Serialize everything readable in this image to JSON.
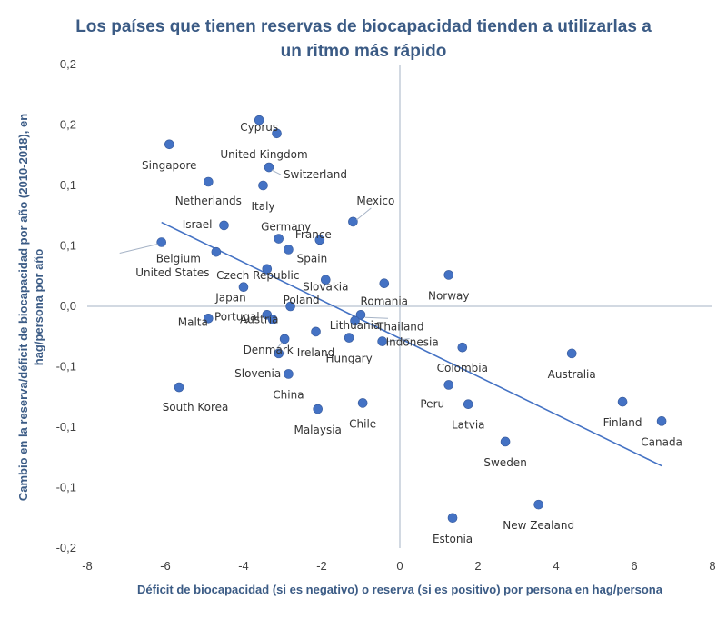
{
  "chart_data": {
    "type": "scatter",
    "title_lines": [
      "Los países que tienen reservas de biocapacidad  tienden a utilizarlas a",
      "un ritmo más rápido"
    ],
    "xlabel": "Déficit de biocapacidad (si es negativo) o reserva (si es positivo) por persona en hag/persona",
    "ylabel_lines": [
      "Cambio en la reserva/déficit de biocapacidad por año (2010-2018), en",
      "hag/persona por año"
    ],
    "xlim": [
      -8,
      8
    ],
    "ylim": [
      -0.2,
      0.2
    ],
    "x_ticks": [
      -8,
      -6,
      -4,
      -2,
      0,
      2,
      4,
      6,
      8
    ],
    "x_tick_labels": [
      "-8",
      "-6",
      "-4",
      "-2",
      "0",
      "2",
      "4",
      "6",
      "8"
    ],
    "y_ticks": [
      0.2,
      0.15,
      0.1,
      0.05,
      0,
      -0.05,
      -0.1,
      -0.15,
      -0.2
    ],
    "y_tick_labels": [
      "0,2",
      "0,2",
      "0,1",
      "0,1",
      "0,0",
      "-0,1",
      "-0,1",
      "-0,1",
      "-0,2"
    ],
    "marker_color": "#4472c4",
    "trendline": {
      "x": [
        -6.1,
        6.7
      ],
      "y": [
        0.0695,
        -0.132
      ],
      "color": "#4472c4"
    },
    "points": [
      {
        "label": "Cyprus",
        "x": -3.6,
        "y": 0.154
      },
      {
        "label": "United Kingdom",
        "x": -3.15,
        "y": 0.143
      },
      {
        "label": "Singapore",
        "x": -5.9,
        "y": 0.134
      },
      {
        "label": "Switzerland",
        "x": -3.35,
        "y": 0.115
      },
      {
        "label": "Netherlands",
        "x": -4.9,
        "y": 0.103
      },
      {
        "label": "Italy",
        "x": -3.5,
        "y": 0.1
      },
      {
        "label": "Mexico",
        "x": -1.2,
        "y": 0.07
      },
      {
        "label": "Israel",
        "x": -4.5,
        "y": 0.067
      },
      {
        "label": "Germany",
        "x": -3.1,
        "y": 0.056
      },
      {
        "label": "France",
        "x": -2.05,
        "y": 0.055
      },
      {
        "label": "Belgium",
        "x": -6.1,
        "y": 0.053
      },
      {
        "label": "Spain",
        "x": -2.85,
        "y": 0.047
      },
      {
        "label": "United States",
        "x": -4.7,
        "y": 0.045
      },
      {
        "label": "Czech Republic",
        "x": -3.4,
        "y": 0.031
      },
      {
        "label": "Japan",
        "x": -4.0,
        "y": 0.016
      },
      {
        "label": "Slovakia",
        "x": -1.9,
        "y": 0.022
      },
      {
        "label": "Norway",
        "x": 1.25,
        "y": 0.026
      },
      {
        "label": "Romania",
        "x": -0.4,
        "y": 0.019
      },
      {
        "label": "Poland",
        "x": -2.8,
        "y": 0.0
      },
      {
        "label": "Thailand",
        "x": -1.0,
        "y": -0.007
      },
      {
        "label": "Malta",
        "x": -4.9,
        "y": -0.01
      },
      {
        "label": "Portugal",
        "x": -3.4,
        "y": -0.007
      },
      {
        "label": "Lithuania",
        "x": -1.15,
        "y": -0.012
      },
      {
        "label": "Austria",
        "x": -3.25,
        "y": -0.011
      },
      {
        "label": "Ireland",
        "x": -2.15,
        "y": -0.021
      },
      {
        "label": "Hungary",
        "x": -1.3,
        "y": -0.026
      },
      {
        "label": "Indonesia",
        "x": -0.45,
        "y": -0.029
      },
      {
        "label": "Denmark",
        "x": -2.95,
        "y": -0.027
      },
      {
        "label": "Colombia",
        "x": 1.6,
        "y": -0.034
      },
      {
        "label": "Australia",
        "x": 4.4,
        "y": -0.039
      },
      {
        "label": "Slovenia",
        "x": -3.1,
        "y": -0.039
      },
      {
        "label": "China",
        "x": -2.85,
        "y": -0.056
      },
      {
        "label": "South Korea",
        "x": -5.65,
        "y": -0.067
      },
      {
        "label": "Peru",
        "x": 1.25,
        "y": -0.065
      },
      {
        "label": "Finland",
        "x": 5.7,
        "y": -0.079
      },
      {
        "label": "Chile",
        "x": -0.95,
        "y": -0.08
      },
      {
        "label": "Latvia",
        "x": 1.75,
        "y": -0.081
      },
      {
        "label": "Malaysia",
        "x": -2.1,
        "y": -0.085
      },
      {
        "label": "Canada",
        "x": 6.7,
        "y": -0.095
      },
      {
        "label": "Sweden",
        "x": 2.7,
        "y": -0.112
      },
      {
        "label": "New Zealand",
        "x": 3.55,
        "y": -0.164
      },
      {
        "label": "Estonia",
        "x": 1.35,
        "y": -0.175
      }
    ]
  }
}
